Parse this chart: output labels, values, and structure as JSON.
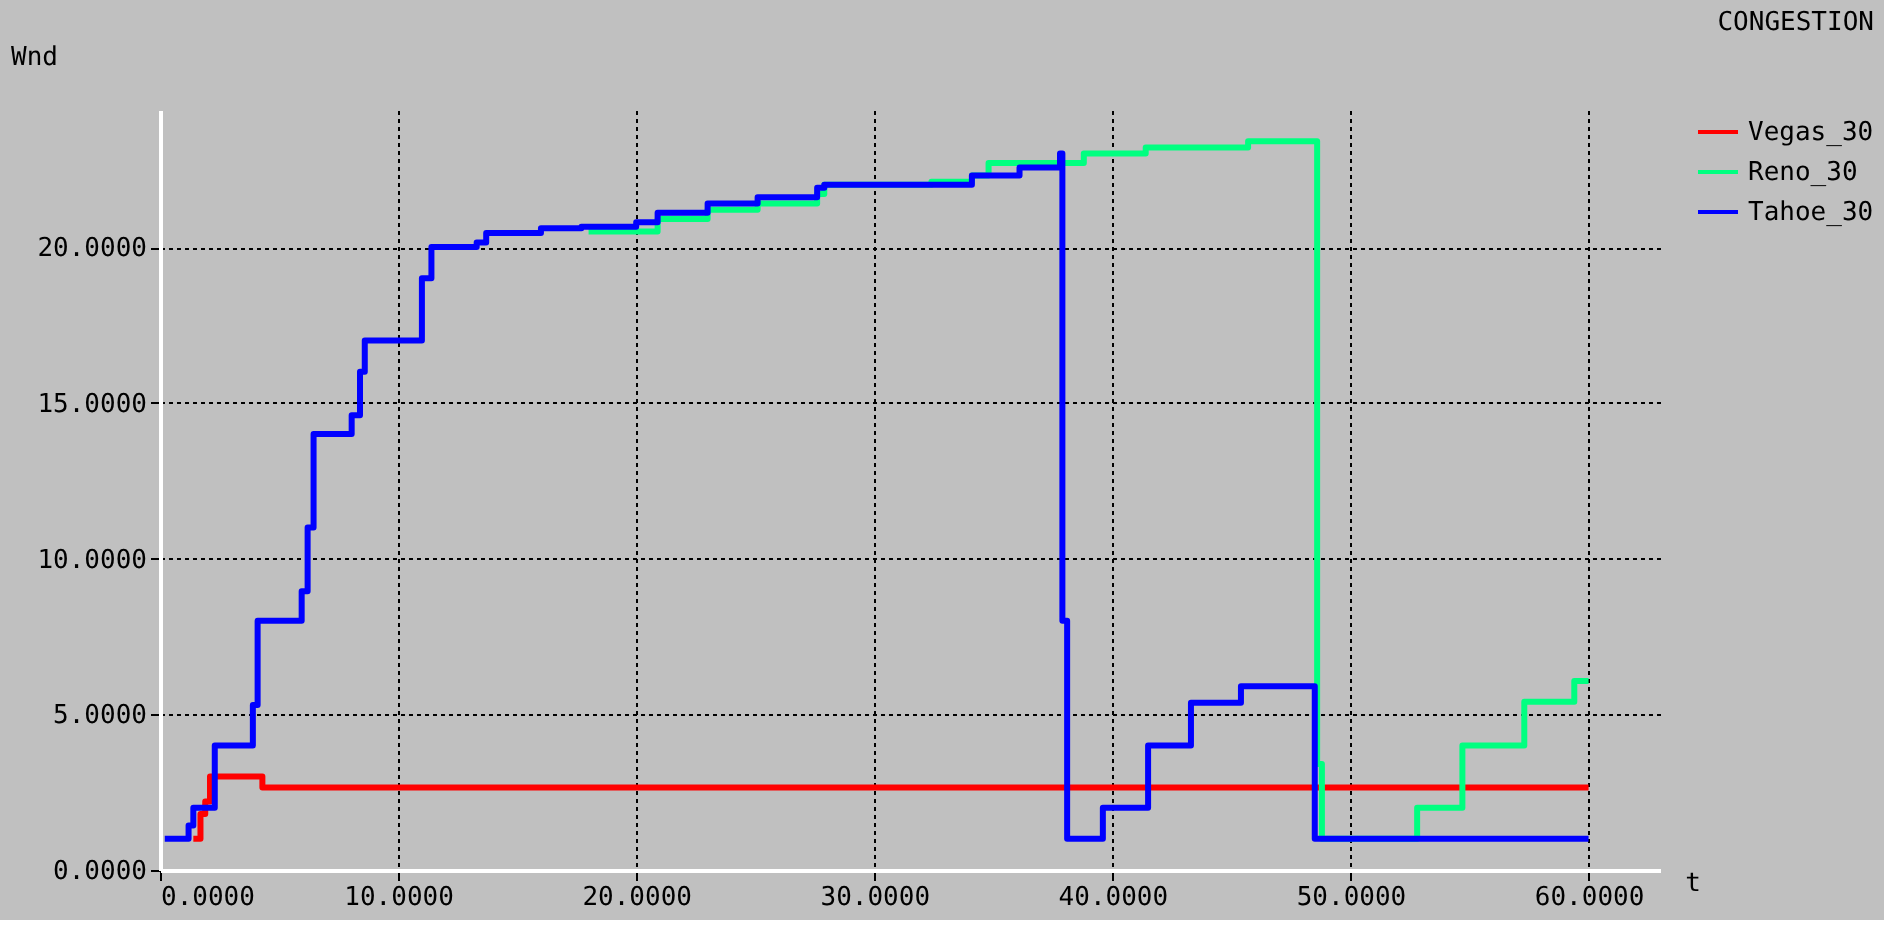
{
  "chart_data": {
    "type": "step",
    "title": "CONGESTION",
    "ylabel": "Wnd",
    "xlabel": "t",
    "xlim": [
      0,
      63
    ],
    "ylim": [
      0,
      24.4
    ],
    "xticks": [
      {
        "value": 0,
        "label": "0.0000"
      },
      {
        "value": 10,
        "label": "10.0000"
      },
      {
        "value": 20,
        "label": "20.0000"
      },
      {
        "value": 30,
        "label": "30.0000"
      },
      {
        "value": 40,
        "label": "40.0000"
      },
      {
        "value": 50,
        "label": "50.0000"
      },
      {
        "value": 60,
        "label": "60.0000"
      }
    ],
    "yticks": [
      {
        "value": 0,
        "label": "0.0000"
      },
      {
        "value": 5,
        "label": "5.0000"
      },
      {
        "value": 10,
        "label": "10.0000"
      },
      {
        "value": 15,
        "label": "15.0000"
      },
      {
        "value": 20,
        "label": "20.0000"
      }
    ],
    "grid": true,
    "legend": "top right",
    "line_style": "solid",
    "marker": "none",
    "series": [
      {
        "name": "Vegas_30",
        "color": "#ff0000",
        "x": [
          1.4,
          1.6,
          1.7,
          1.9,
          2.1,
          4.0,
          4.3,
          60
        ],
        "values": [
          1,
          1,
          1.8,
          2.2,
          3.0,
          3.0,
          2.65,
          2.65
        ]
      },
      {
        "name": "Reno_30",
        "color": "#00ff80",
        "x": [
          18.0,
          20.9,
          23.0,
          25.1,
          27.6,
          27.9,
          32.4,
          34.1,
          34.8,
          37.9,
          38.8,
          41.4,
          45.7,
          48.4,
          48.6,
          48.8,
          52.6,
          52.8,
          54.7,
          57.3,
          59.4,
          60
        ],
        "values": [
          20.5,
          20.9,
          21.2,
          21.4,
          21.7,
          22.0,
          22.1,
          22.3,
          22.7,
          22.7,
          23.0,
          23.2,
          23.4,
          23.4,
          3.4,
          1,
          1,
          2,
          4,
          5.4,
          6.07,
          6.07
        ]
      },
      {
        "name": "Tahoe_30",
        "color": "#0000ff",
        "x": [
          0.2,
          1.2,
          1.4,
          2.2,
          2.3,
          3.9,
          4.1,
          5.95,
          6.2,
          6.45,
          8.05,
          8.4,
          8.6,
          10.6,
          11.0,
          11.4,
          13.3,
          13.7,
          16.0,
          17.7,
          20.0,
          20.9,
          23.0,
          25.1,
          27.6,
          27.9,
          32.3,
          34.1,
          36.1,
          37.8,
          37.9,
          38.1,
          39.4,
          39.6,
          41.4,
          41.5,
          43.2,
          43.3,
          45.3,
          45.4,
          48.4,
          48.5,
          60
        ],
        "values": [
          1,
          1.43,
          2.0,
          2.0,
          4.0,
          5.3,
          8.0,
          8.95,
          11.0,
          14.0,
          14.6,
          16.0,
          17.0,
          17.0,
          19.0,
          20.0,
          20.15,
          20.45,
          20.6,
          20.65,
          20.8,
          21.1,
          21.4,
          21.6,
          21.9,
          22.0,
          22.0,
          22.3,
          22.55,
          23.0,
          8,
          1,
          1,
          2,
          2,
          4,
          4,
          5.37,
          5.37,
          5.9,
          5.9,
          1,
          1
        ]
      }
    ]
  }
}
